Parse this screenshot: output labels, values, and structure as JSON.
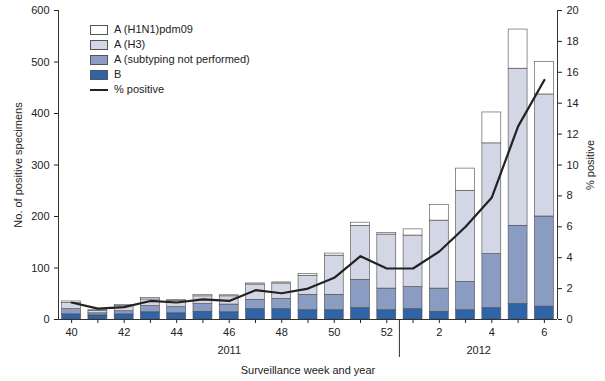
{
  "chart_data": {
    "type": "bar",
    "stacked": true,
    "x_label": "Surveillance week and year",
    "y_label": "No. of positive specimens",
    "y2_label": "% positive",
    "categories": [
      "40",
      null,
      "42",
      null,
      "44",
      null,
      "46",
      null,
      "48",
      null,
      "50",
      null,
      "52",
      null,
      "2",
      null,
      "4",
      null,
      "6"
    ],
    "groups": [
      {
        "label": "2011",
        "count": 13
      },
      {
        "label": "2012",
        "count": 6
      }
    ],
    "series": [
      {
        "name": "B",
        "color": "#2f64a8",
        "values": [
          10,
          8,
          10,
          14,
          12,
          15,
          14,
          20,
          20,
          18,
          18,
          22,
          18,
          20,
          15,
          18,
          22,
          30,
          25
        ]
      },
      {
        "name": "A (subtyping not performed)",
        "color": "#8a9cc2",
        "values": [
          10,
          4,
          6,
          12,
          12,
          15,
          15,
          18,
          20,
          30,
          30,
          55,
          42,
          43,
          45,
          55,
          105,
          152,
          175
        ]
      },
      {
        "name": "A (H3)",
        "color": "#d3d6e4",
        "values": [
          12,
          5,
          10,
          13,
          12,
          15,
          16,
          30,
          30,
          37,
          76,
          105,
          105,
          100,
          132,
          177,
          215,
          305,
          237
        ]
      },
      {
        "name": "A (H1N1)pdm09",
        "color": "#ffffff",
        "values": [
          3,
          1,
          2,
          3,
          2,
          3,
          2,
          2,
          2,
          3,
          4,
          6,
          3,
          12,
          30,
          43,
          60,
          76,
          63
        ]
      },
      {
        "name": "% positive",
        "type": "line",
        "axis": "y2",
        "color": "#222222",
        "values": [
          1.1,
          0.7,
          0.8,
          1.2,
          1.1,
          1.3,
          1.2,
          1.9,
          1.7,
          2.0,
          2.7,
          4.1,
          3.3,
          3.3,
          4.4,
          6.0,
          7.9,
          12.5,
          15.5
        ]
      }
    ],
    "ylim": [
      0,
      600
    ],
    "yticks": [
      0,
      100,
      200,
      300,
      400,
      500,
      600
    ],
    "y2lim": [
      0,
      20
    ],
    "y2ticks": [
      0,
      2,
      4,
      6,
      8,
      10,
      12,
      14,
      16,
      18,
      20
    ],
    "legend": "top-left",
    "grid": false
  }
}
